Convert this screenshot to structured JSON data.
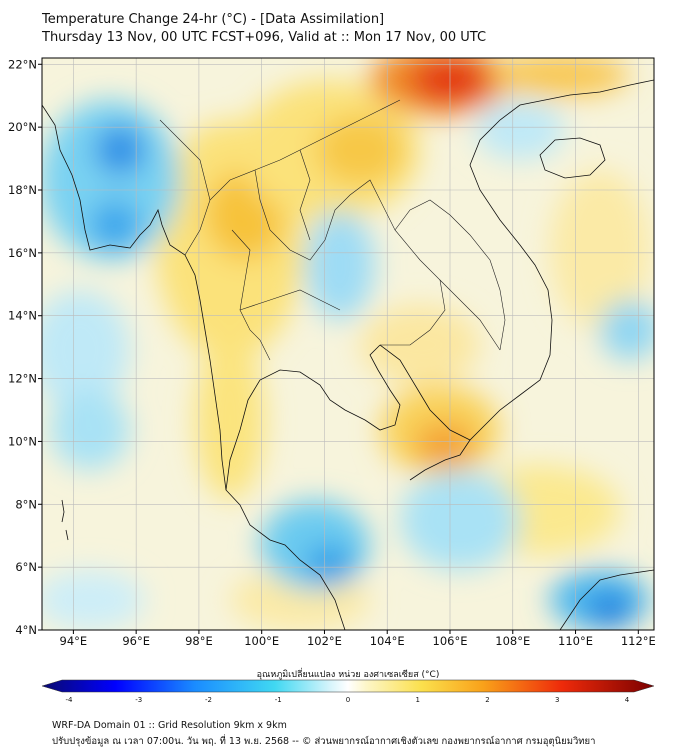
{
  "title": {
    "line1": "Temperature Change 24-hr (°C) - [Data Assimilation]",
    "line2": "Thursday 13 Nov, 00 UTC FCST+096, Valid at :: Mon 17 Nov, 00 UTC"
  },
  "map": {
    "lat_ticks": [
      "22°N",
      "20°N",
      "18°N",
      "16°N",
      "14°N",
      "12°N",
      "10°N",
      "8°N",
      "6°N",
      "4°N"
    ],
    "lon_ticks": [
      "94°E",
      "96°E",
      "98°E",
      "100°E",
      "102°E",
      "104°E",
      "106°E",
      "108°E",
      "110°E",
      "112°E"
    ],
    "lat_range": [
      4,
      22.2
    ],
    "lon_range": [
      93,
      112.5
    ],
    "grid": true,
    "field": "24-hr temperature change",
    "colors": {
      "cold_strong": "#0033cc",
      "cold": "#33aaee",
      "cool": "#aee2f5",
      "neutral": "#f7f7ee",
      "warm": "#fbe58a",
      "warmer": "#f7c23a",
      "hot": "#e73b16",
      "extreme": "#c40000"
    }
  },
  "colorbar": {
    "title": "อุณหภูมิเปลี่ยนแปลง หน่วย องศาเซลเซียส (°C)",
    "ticks": [
      "-4",
      "-3",
      "-2",
      "-1",
      "0",
      "1",
      "2",
      "3",
      "4"
    ],
    "range": [
      -4,
      4
    ]
  },
  "footer": {
    "line1": "WRF-DA Domain 01 :: Grid Resolution 9km x 9km",
    "line2": "ปรับปรุงข้อมูล ณ เวลา 07:00น. วัน พฤ. ที่ 13 พ.ย. 2568 -- © ส่วนพยากรณ์อากาศเชิงตัวเลข กองพยากรณ์อากาศ กรมอุตุนิยมวิทยา"
  }
}
